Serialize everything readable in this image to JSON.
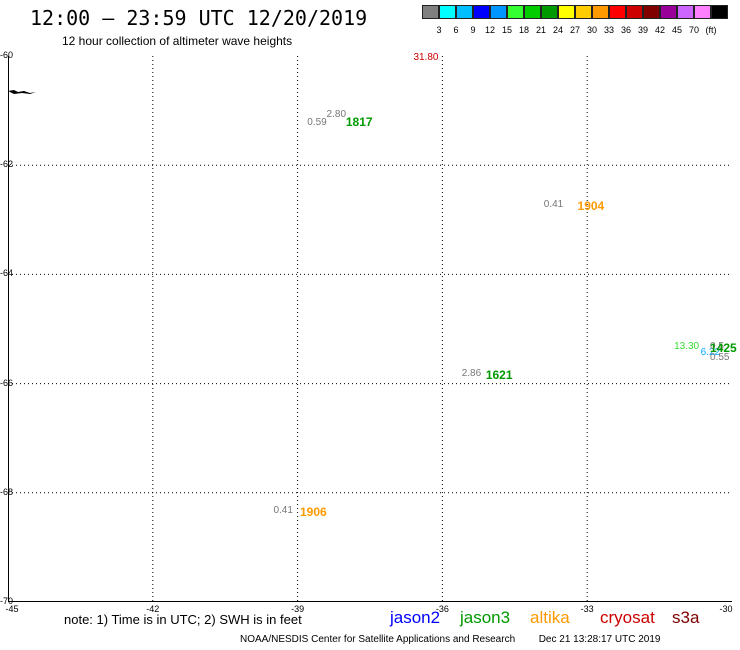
{
  "header": {
    "title": "12:00 – 23:59 UTC 12/20/2019",
    "subtitle": "12 hour collection of altimeter wave heights"
  },
  "color_scale": {
    "colors": [
      "#808080",
      "#00ffff",
      "#00bfff",
      "#0000ff",
      "#0096ff",
      "#33ff33",
      "#00cc00",
      "#009900",
      "#ffff00",
      "#ffcc00",
      "#ff9900",
      "#ff0000",
      "#cc0000",
      "#800000",
      "#990099",
      "#cc66ff",
      "#ff80ff",
      "#000000"
    ],
    "labels": [
      "3",
      "6",
      "9",
      "12",
      "15",
      "18",
      "21",
      "24",
      "27",
      "30",
      "33",
      "36",
      "39",
      "42",
      "45",
      "70",
      "(ft)"
    ]
  },
  "map": {
    "lat_labels": [
      "-60",
      "-62",
      "-64",
      "-66",
      "-68",
      "-70"
    ],
    "lon_labels": [
      "-45",
      "-42",
      "-39",
      "-36",
      "-33",
      "-30"
    ],
    "lon_range": [
      -45,
      -30
    ],
    "lat_range": [
      -60,
      -70
    ]
  },
  "observations": [
    {
      "value": "31.80",
      "color": "#cc0000",
      "lon": -36.6,
      "lat": -60.05
    },
    {
      "value": "2.80",
      "color": "#777777",
      "lon": -38.4,
      "lat": -61.1
    },
    {
      "value": "0.59",
      "color": "#777777",
      "lon": -38.8,
      "lat": -61.25
    },
    {
      "value": "0.41",
      "color": "#777777",
      "lon": -33.9,
      "lat": -62.75
    },
    {
      "value": "13.30",
      "color": "#33dd33",
      "lon": -31.2,
      "lat": -65.35
    },
    {
      "value": "6.22",
      "color": "#00aaff",
      "lon": -30.65,
      "lat": -65.45
    },
    {
      "value": "0.5",
      "color": "#777777",
      "lon": -30.05,
      "lat": -65.35
    },
    {
      "value": "0.55",
      "color": "#777777",
      "lon": -30.05,
      "lat": -65.55
    },
    {
      "value": "2.86",
      "color": "#777777",
      "lon": -35.6,
      "lat": -65.85
    },
    {
      "value": "0.41",
      "color": "#777777",
      "lon": -39.5,
      "lat": -68.35
    }
  ],
  "pass_times": [
    {
      "value": "1817",
      "color": "#009900",
      "lon": -38.0,
      "lat": -61.2
    },
    {
      "value": "1904",
      "color": "#ff9900",
      "lon": -33.2,
      "lat": -62.75
    },
    {
      "value": "1425",
      "color": "#009900",
      "lon": -30.4,
      "lat": -65.35
    },
    {
      "value": "1621",
      "color": "#009900",
      "lon": -35.1,
      "lat": -65.85
    },
    {
      "value": "1906",
      "color": "#ff9900",
      "lon": -38.95,
      "lat": -68.35
    }
  ],
  "note": "note: 1) Time is in UTC; 2) SWH is in feet",
  "legend": [
    {
      "name": "jason2",
      "color": "#0000ff"
    },
    {
      "name": "jason3",
      "color": "#009900"
    },
    {
      "name": "altika",
      "color": "#ff9900"
    },
    {
      "name": "cryosat",
      "color": "#cc0000"
    },
    {
      "name": "s3a",
      "color": "#800000"
    }
  ],
  "footer": {
    "credit": "NOAA/NESDIS Center for Satellite Applications and Research",
    "generated": "Dec 21 13:28:17 UTC 2019"
  }
}
